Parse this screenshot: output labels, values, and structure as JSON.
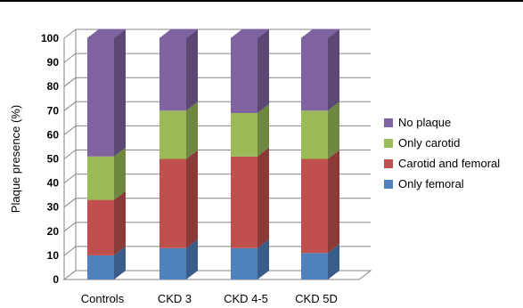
{
  "chart_data": {
    "type": "bar",
    "stacked": true,
    "style": "3d",
    "ylabel": "Plaque presence (%)",
    "xlabel": "",
    "ylim": [
      0,
      100
    ],
    "yticks": [
      0,
      10,
      20,
      30,
      40,
      50,
      60,
      70,
      80,
      90,
      100
    ],
    "categories": [
      "Controls",
      "CKD 3",
      "CKD 4-5",
      "CKD 5D"
    ],
    "series": [
      {
        "name": "Only femoral",
        "color": "#4F81BD",
        "values": [
          10,
          13,
          13,
          11
        ]
      },
      {
        "name": "Carotid and femoral",
        "color": "#C0504D",
        "values": [
          23,
          37,
          38,
          39
        ]
      },
      {
        "name": "Only carotid",
        "color": "#9BBB59",
        "values": [
          18,
          20,
          18,
          20
        ]
      },
      {
        "name": "No plaque",
        "color": "#8064A2",
        "values": [
          49,
          30,
          31,
          30
        ]
      }
    ],
    "legend_order": [
      "No plaque",
      "Only carotid",
      "Carotid and femoral",
      "Only femoral"
    ],
    "legend_position": "right",
    "grid": true
  }
}
